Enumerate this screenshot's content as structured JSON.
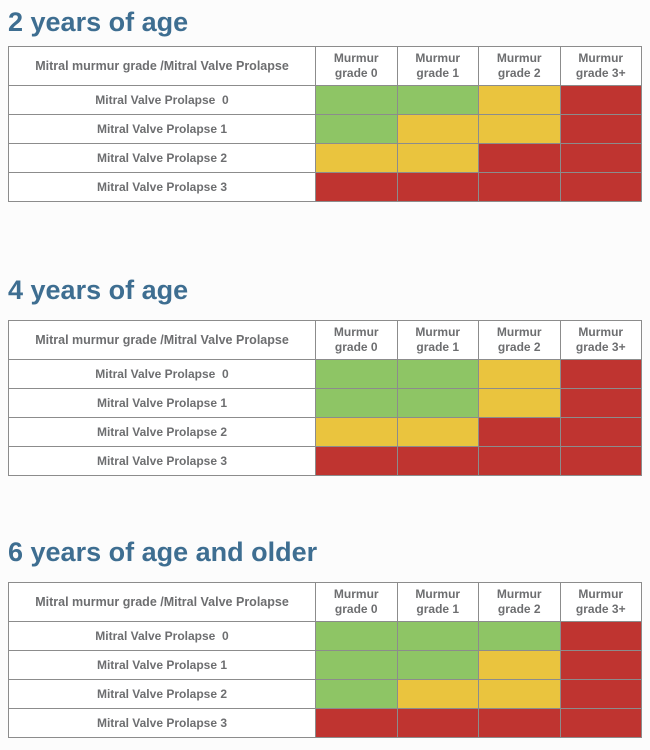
{
  "colors": {
    "heading": "#3e6e91",
    "table_text": "#6d6e70",
    "border": "#8c8c8c",
    "green": "#8ec565",
    "yellow": "#eac43e",
    "red": "#bf3430"
  },
  "chart_data": [
    {
      "type": "heatmap",
      "title": "2 years of age",
      "corner_header": "Mitral murmur grade /Mitral Valve Prolapse",
      "columns": [
        "Murmur grade 0",
        "Murmur grade 1",
        "Murmur grade 2",
        "Murmur grade 3+"
      ],
      "rows": [
        {
          "label": "Mitral Valve Prolapse  0",
          "cells": [
            "green",
            "green",
            "yellow",
            "red"
          ]
        },
        {
          "label": "Mitral Valve Prolapse 1",
          "cells": [
            "green",
            "yellow",
            "yellow",
            "red"
          ]
        },
        {
          "label": "Mitral Valve Prolapse 2",
          "cells": [
            "yellow",
            "yellow",
            "red",
            "red"
          ]
        },
        {
          "label": "Mitral Valve Prolapse 3",
          "cells": [
            "red",
            "red",
            "red",
            "red"
          ]
        }
      ]
    },
    {
      "type": "heatmap",
      "title": "4 years of age",
      "corner_header": "Mitral murmur grade /Mitral Valve Prolapse",
      "columns": [
        "Murmur grade 0",
        "Murmur grade 1",
        "Murmur grade 2",
        "Murmur grade 3+"
      ],
      "rows": [
        {
          "label": "Mitral Valve Prolapse  0",
          "cells": [
            "green",
            "green",
            "yellow",
            "red"
          ]
        },
        {
          "label": "Mitral Valve Prolapse 1",
          "cells": [
            "green",
            "green",
            "yellow",
            "red"
          ]
        },
        {
          "label": "Mitral Valve Prolapse 2",
          "cells": [
            "yellow",
            "yellow",
            "red",
            "red"
          ]
        },
        {
          "label": "Mitral Valve Prolapse 3",
          "cells": [
            "red",
            "red",
            "red",
            "red"
          ]
        }
      ]
    },
    {
      "type": "heatmap",
      "title": "6 years of age and older",
      "corner_header": "Mitral murmur grade /Mitral Valve Prolapse",
      "columns": [
        "Murmur grade 0",
        "Murmur grade 1",
        "Murmur grade 2",
        "Murmur grade 3+"
      ],
      "rows": [
        {
          "label": "Mitral Valve Prolapse  0",
          "cells": [
            "green",
            "green",
            "green",
            "red"
          ]
        },
        {
          "label": "Mitral Valve Prolapse 1",
          "cells": [
            "green",
            "green",
            "yellow",
            "red"
          ]
        },
        {
          "label": "Mitral Valve Prolapse 2",
          "cells": [
            "green",
            "yellow",
            "yellow",
            "red"
          ]
        },
        {
          "label": "Mitral Valve Prolapse 3",
          "cells": [
            "red",
            "red",
            "red",
            "red"
          ]
        }
      ]
    }
  ]
}
